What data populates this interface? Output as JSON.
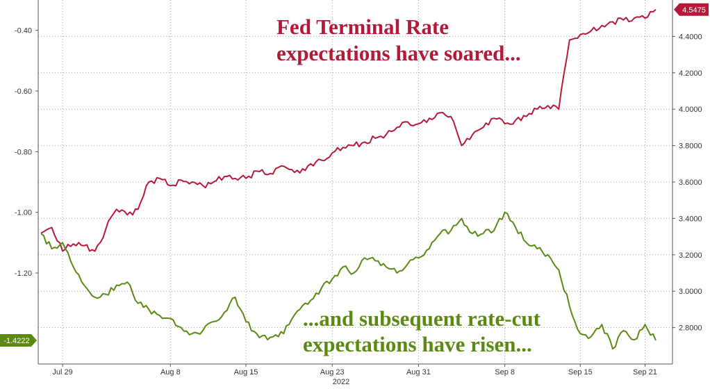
{
  "chart_data": {
    "type": "line",
    "x_year_label": "2022",
    "x_tick_labels": [
      "Jul 29",
      "Aug 8",
      "Aug 15",
      "Aug 23",
      "Aug 31",
      "Sep 8",
      "Sep 15",
      "Sep 21"
    ],
    "left_axis": {
      "ylim": [
        -1.5,
        -0.3
      ],
      "ticks": [
        "-0.40",
        "-0.60",
        "-0.80",
        "-1.00",
        "-1.20"
      ]
    },
    "right_axis": {
      "ylim": [
        2.6,
        4.6
      ],
      "ticks": [
        "4.4000",
        "4.2000",
        "4.0000",
        "3.8000",
        "3.6000",
        "3.4000",
        "3.2000",
        "3.0000",
        "2.8000"
      ]
    },
    "grid": true,
    "series": [
      {
        "axis": "right",
        "color": "#b5193a",
        "last_value_label": "4.5475",
        "x": [
          "2022-07-27",
          "2022-07-28",
          "2022-07-29",
          "2022-07-30",
          "2022-07-31",
          "2022-08-01",
          "2022-08-02",
          "2022-08-03",
          "2022-08-04",
          "2022-08-05",
          "2022-08-06",
          "2022-08-07",
          "2022-08-08",
          "2022-08-09",
          "2022-08-10",
          "2022-08-11",
          "2022-08-12",
          "2022-08-13",
          "2022-08-14",
          "2022-08-15",
          "2022-08-16",
          "2022-08-17",
          "2022-08-18",
          "2022-08-19",
          "2022-08-20",
          "2022-08-21",
          "2022-08-22",
          "2022-08-23",
          "2022-08-24",
          "2022-08-25",
          "2022-08-26",
          "2022-08-27",
          "2022-08-28",
          "2022-08-29",
          "2022-08-30",
          "2022-08-31",
          "2022-09-01",
          "2022-09-02",
          "2022-09-03",
          "2022-09-04",
          "2022-09-05",
          "2022-09-06",
          "2022-09-07",
          "2022-09-08",
          "2022-09-09",
          "2022-09-10",
          "2022-09-11",
          "2022-09-12",
          "2022-09-13",
          "2022-09-14",
          "2022-09-15",
          "2022-09-16",
          "2022-09-17",
          "2022-09-18",
          "2022-09-19",
          "2022-09-20",
          "2022-09-21",
          "2022-09-22"
        ],
        "values": [
          3.32,
          3.35,
          3.22,
          3.26,
          3.25,
          3.22,
          3.34,
          3.45,
          3.42,
          3.45,
          3.6,
          3.62,
          3.58,
          3.61,
          3.6,
          3.58,
          3.6,
          3.63,
          3.62,
          3.62,
          3.66,
          3.64,
          3.68,
          3.67,
          3.65,
          3.7,
          3.72,
          3.76,
          3.79,
          3.8,
          3.82,
          3.84,
          3.86,
          3.9,
          3.93,
          3.92,
          3.95,
          3.98,
          3.96,
          3.8,
          3.86,
          3.9,
          3.95,
          3.92,
          3.94,
          3.96,
          4.0,
          4.02,
          4.0,
          4.38,
          4.41,
          4.43,
          4.46,
          4.48,
          4.49,
          4.5,
          4.5,
          4.5475
        ]
      },
      {
        "axis": "left",
        "color": "#5a8a12",
        "last_value_label": "-1.4222",
        "x": [
          "2022-07-27",
          "2022-07-28",
          "2022-07-29",
          "2022-07-30",
          "2022-07-31",
          "2022-08-01",
          "2022-08-02",
          "2022-08-03",
          "2022-08-04",
          "2022-08-05",
          "2022-08-06",
          "2022-08-07",
          "2022-08-08",
          "2022-08-09",
          "2022-08-10",
          "2022-08-11",
          "2022-08-12",
          "2022-08-13",
          "2022-08-14",
          "2022-08-15",
          "2022-08-16",
          "2022-08-17",
          "2022-08-18",
          "2022-08-19",
          "2022-08-20",
          "2022-08-21",
          "2022-08-22",
          "2022-08-23",
          "2022-08-24",
          "2022-08-25",
          "2022-08-26",
          "2022-08-27",
          "2022-08-28",
          "2022-08-29",
          "2022-08-30",
          "2022-08-31",
          "2022-09-01",
          "2022-09-02",
          "2022-09-03",
          "2022-09-04",
          "2022-09-05",
          "2022-09-06",
          "2022-09-07",
          "2022-09-08",
          "2022-09-09",
          "2022-09-10",
          "2022-09-11",
          "2022-09-12",
          "2022-09-13",
          "2022-09-14",
          "2022-09-15",
          "2022-09-16",
          "2022-09-17",
          "2022-09-18",
          "2022-09-19",
          "2022-09-20",
          "2022-09-21",
          "2022-09-22"
        ],
        "values": [
          -1.07,
          -1.12,
          -1.1,
          -1.18,
          -1.24,
          -1.28,
          -1.27,
          -1.24,
          -1.23,
          -1.3,
          -1.32,
          -1.34,
          -1.35,
          -1.38,
          -1.4,
          -1.39,
          -1.36,
          -1.33,
          -1.28,
          -1.36,
          -1.4,
          -1.42,
          -1.41,
          -1.37,
          -1.32,
          -1.29,
          -1.25,
          -1.22,
          -1.18,
          -1.2,
          -1.15,
          -1.16,
          -1.18,
          -1.2,
          -1.17,
          -1.15,
          -1.12,
          -1.07,
          -1.06,
          -1.02,
          -1.07,
          -1.07,
          -1.06,
          -1.0,
          -1.05,
          -1.1,
          -1.12,
          -1.14,
          -1.19,
          -1.31,
          -1.4,
          -1.41,
          -1.37,
          -1.45,
          -1.39,
          -1.42,
          -1.37,
          -1.4222
        ]
      }
    ],
    "annotations": [
      {
        "lines": [
          "Fed Terminal Rate",
          "expectations have soared..."
        ],
        "color": "#b5193a"
      },
      {
        "lines": [
          "...and subsequent rate-cut",
          "expectations have risen..."
        ],
        "color": "#5a8a12"
      }
    ]
  }
}
